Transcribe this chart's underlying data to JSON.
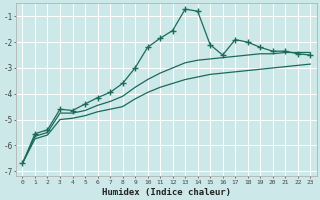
{
  "xlabel": "Humidex (Indice chaleur)",
  "bg_color": "#cce8e8",
  "line_color": "#1a6b5a",
  "grid_color": "#ffffff",
  "xlim": [
    -0.5,
    23.5
  ],
  "ylim": [
    -7.2,
    -0.5
  ],
  "yticks": [
    -7,
    -6,
    -5,
    -4,
    -3,
    -2,
    -1
  ],
  "xticks": [
    0,
    1,
    2,
    3,
    4,
    5,
    6,
    7,
    8,
    9,
    10,
    11,
    12,
    13,
    14,
    15,
    16,
    17,
    18,
    19,
    20,
    21,
    22,
    23
  ],
  "line1_x": [
    0,
    1,
    2,
    3,
    4,
    5,
    6,
    7,
    8,
    9,
    10,
    11,
    12,
    13,
    14,
    15,
    16,
    17,
    18,
    19,
    20,
    21,
    22,
    23
  ],
  "line1_y": [
    -6.7,
    -5.55,
    -5.4,
    -4.6,
    -4.65,
    -4.4,
    -4.15,
    -3.95,
    -3.6,
    -3.0,
    -2.2,
    -1.85,
    -1.55,
    -0.72,
    -0.8,
    -2.1,
    -2.5,
    -1.9,
    -2.0,
    -2.2,
    -2.35,
    -2.35,
    -2.45,
    -2.5
  ],
  "line2_x": [
    0,
    1,
    2,
    3,
    4,
    5,
    6,
    7,
    8,
    9,
    10,
    11,
    12,
    13,
    14,
    15,
    16,
    17,
    18,
    19,
    20,
    21,
    22,
    23
  ],
  "line2_y": [
    -6.7,
    -5.65,
    -5.5,
    -4.75,
    -4.75,
    -4.65,
    -4.45,
    -4.3,
    -4.1,
    -3.75,
    -3.45,
    -3.2,
    -3.0,
    -2.8,
    -2.7,
    -2.65,
    -2.6,
    -2.55,
    -2.5,
    -2.45,
    -2.45,
    -2.4,
    -2.4,
    -2.4
  ],
  "line3_x": [
    0,
    1,
    2,
    3,
    4,
    5,
    6,
    7,
    8,
    9,
    10,
    11,
    12,
    13,
    14,
    15,
    16,
    17,
    18,
    19,
    20,
    21,
    22,
    23
  ],
  "line3_y": [
    -6.7,
    -5.75,
    -5.6,
    -5.0,
    -4.95,
    -4.85,
    -4.7,
    -4.6,
    -4.5,
    -4.2,
    -3.95,
    -3.75,
    -3.6,
    -3.45,
    -3.35,
    -3.25,
    -3.2,
    -3.15,
    -3.1,
    -3.05,
    -3.0,
    -2.95,
    -2.9,
    -2.85
  ]
}
